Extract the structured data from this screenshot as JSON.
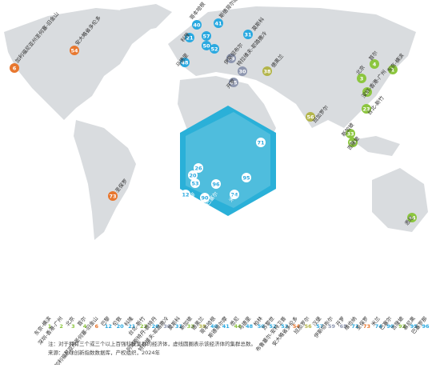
{
  "regions": {
    "asia": "#8cc63f",
    "americas": "#e8772e",
    "europe": "#2aa9e0",
    "mideast": "#8e97b0",
    "south": "#b3b54a"
  },
  "legend": {
    "items": [
      {
        "rank": 1,
        "label": "东京-横滨",
        "region": "asia"
      },
      {
        "rank": 2,
        "label": "深圳-香港-广州",
        "region": "asia"
      },
      {
        "rank": 3,
        "label": "北京",
        "region": "asia"
      },
      {
        "rank": 4,
        "label": "首尔",
        "region": "asia"
      },
      {
        "rank": 6,
        "label": "加利福尼亚州圣何塞-旧金山",
        "region": "americas"
      },
      {
        "rank": 12,
        "label": "巴黎",
        "region": "europe"
      },
      {
        "rank": 20,
        "label": "伦敦",
        "region": "europe"
      },
      {
        "rank": 21,
        "label": "科隆",
        "region": "europe"
      },
      {
        "rank": 23,
        "label": "台北-新竹",
        "region": "asia"
      },
      {
        "rank": 26,
        "label": "阿姆斯特丹-鹿特丹",
        "region": "europe"
      },
      {
        "rank": 30,
        "label": "特拉维夫-耶路撒冷",
        "region": "mideast"
      },
      {
        "rank": 31,
        "label": "莫斯科",
        "region": "europe"
      },
      {
        "rank": 33,
        "label": "新加坡",
        "region": "asia"
      },
      {
        "rank": 38,
        "label": "德黑兰",
        "region": "south"
      },
      {
        "rank": 40,
        "label": "哥本哈根",
        "region": "europe"
      },
      {
        "rank": 41,
        "label": "斯德哥尔摩",
        "region": "europe"
      },
      {
        "rank": 44,
        "label": "悉尼",
        "region": "asia"
      },
      {
        "rank": 48,
        "label": "马德里",
        "region": "europe"
      },
      {
        "rank": 50,
        "label": "柏林",
        "region": "europe"
      },
      {
        "rank": 52,
        "label": "苏黎世",
        "region": "europe"
      },
      {
        "rank": 53,
        "label": "布鲁塞尔-安特卫普",
        "region": "europe"
      },
      {
        "rank": 54,
        "label": "安大略省多伦多",
        "region": "americas"
      },
      {
        "rank": 56,
        "label": "班加罗尔",
        "region": "south"
      },
      {
        "rank": 57,
        "label": "汉堡",
        "region": "europe"
      },
      {
        "rank": 59,
        "label": "伊斯坦布尔",
        "region": "mideast"
      },
      {
        "rank": 65,
        "label": "开罗",
        "region": "mideast"
      },
      {
        "rank": 71,
        "label": "维也纳",
        "region": "europe"
      },
      {
        "rank": 73,
        "label": "圣保罗",
        "region": "americas"
      },
      {
        "rank": 74,
        "label": "米兰",
        "region": "europe"
      },
      {
        "rank": 90,
        "label": "巴塞尔",
        "region": "europe"
      },
      {
        "rank": 93,
        "label": "吉隆坡",
        "region": "asia"
      },
      {
        "rank": 95,
        "label": "慕尼黑",
        "region": "europe"
      },
      {
        "rank": 96,
        "label": "巴塞罗那",
        "region": "europe"
      }
    ]
  },
  "note": "注：对于拥有三个或三个以上百强科技集群的经济体，虚线圆圈表示该经济体的集群总数。",
  "source": "来源：全球创新指数数据库，产权组织，2024年"
}
